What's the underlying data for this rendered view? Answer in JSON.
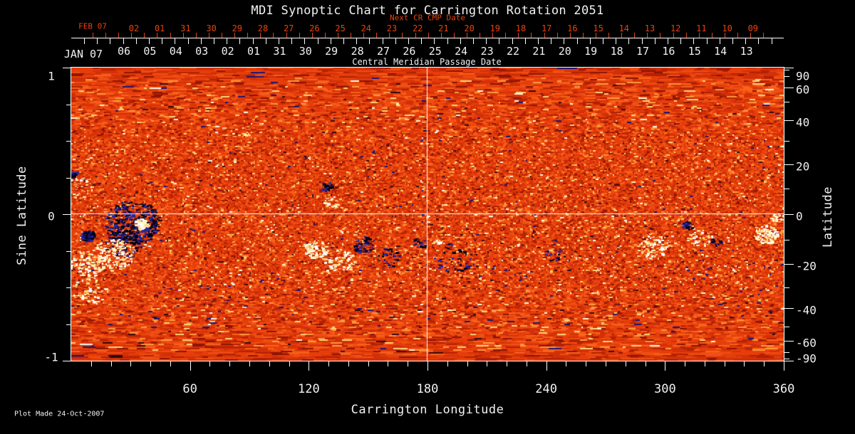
{
  "title": "MDI Synoptic Chart for Carrington Rotation 2051",
  "footer": {
    "plot_made": "Plot Made 24-Oct-2007"
  },
  "colors": {
    "background": "#000000",
    "foreground": "#f2f2f2",
    "accent_red": "#e8430d"
  },
  "chart_data": {
    "type": "heatmap",
    "title": "MDI Synoptic Chart for Carrington Rotation 2051",
    "xlabel": "Carrington Longitude",
    "ylabel_left": "Sine Latitude",
    "ylabel_right": "Latitude",
    "xlim": [
      0,
      360
    ],
    "ylim_sine_latitude": [
      -1,
      1
    ],
    "x_major_ticks": [
      60,
      120,
      180,
      240,
      300,
      360
    ],
    "x_minor_tick_step_deg": 10,
    "left_axis_major_ticks": [
      1,
      0,
      -1
    ],
    "left_axis_minor_ticks": [
      0.75,
      0.5,
      0.25,
      -0.25,
      -0.5,
      -0.75
    ],
    "right_axis_tick_latitudes": [
      90,
      80,
      70,
      60,
      50,
      40,
      30,
      20,
      10,
      0,
      -10,
      -20,
      -30,
      -40,
      -50,
      -60,
      -70,
      -80,
      -90
    ],
    "right_axis_labeled_latitudes": [
      90,
      60,
      40,
      20,
      0,
      -20,
      -40,
      -60,
      -90
    ],
    "crosshair": {
      "longitude": 180,
      "sine_latitude": 0
    },
    "top_axis": {
      "subtitle": "Next CR CMP Date",
      "axis_caption": "Central Meridian Passage Date",
      "next_cr_row": {
        "month_label": "FEB 07",
        "days": [
          "02",
          "01",
          "31",
          "30",
          "29",
          "28",
          "27",
          "26",
          "25",
          "24",
          "23",
          "22",
          "21",
          "20",
          "19",
          "18",
          "17",
          "16",
          "15",
          "14",
          "13",
          "12",
          "11",
          "10",
          "09"
        ]
      },
      "cmp_row": {
        "month_label": "JAN 07",
        "days": [
          "06",
          "05",
          "04",
          "03",
          "02",
          "01",
          "31",
          "30",
          "29",
          "28",
          "27",
          "26",
          "25",
          "24",
          "23",
          "22",
          "21",
          "20",
          "19",
          "18",
          "17",
          "16",
          "15",
          "14",
          "13"
        ]
      }
    },
    "colormap": {
      "description": "Solar magnetogram: orange-red quiet sun, dark navy/black patches = negative magnetic polarity, white/yellow patches = positive magnetic polarity",
      "base_stops": [
        {
          "p": 0.004,
          "color": "#16167a"
        },
        {
          "p": 0.01,
          "color": "#2f0a12"
        },
        {
          "p": 0.05,
          "color": "#8c1404"
        },
        {
          "p": 0.15,
          "color": "#b32104"
        },
        {
          "p": 0.38,
          "color": "#d23008"
        },
        {
          "p": 0.65,
          "color": "#e63e0b"
        },
        {
          "p": 0.83,
          "color": "#ef4f12"
        },
        {
          "p": 0.93,
          "color": "#f8631a"
        },
        {
          "p": 0.975,
          "color": "#ff9a3e"
        },
        {
          "p": 0.994,
          "color": "#ffd57a"
        },
        {
          "p": 1.1,
          "color": "#fffbe6"
        }
      ],
      "negative_colors": [
        "#00001c",
        "#13137a",
        "#26269e",
        "#050510"
      ],
      "positive_colors": [
        "#ffffff",
        "#fff6c8",
        "#ffd67d"
      ]
    },
    "active_regions": [
      {
        "lon": 9,
        "sine_lat": -0.15,
        "radius": 10,
        "polarity": "negative",
        "density": 1.0
      },
      {
        "lon": 31,
        "sine_lat": -0.06,
        "radius": 40,
        "polarity": "negative",
        "density": 0.45
      },
      {
        "lon": 27,
        "sine_lat": -0.2,
        "radius": 26,
        "polarity": "negative",
        "density": 0.3
      },
      {
        "lon": 36,
        "sine_lat": -0.07,
        "radius": 10,
        "polarity": "positive",
        "density": 1.0
      },
      {
        "lon": 22,
        "sine_lat": -0.28,
        "radius": 30,
        "polarity": "positive",
        "density": 0.3
      },
      {
        "lon": 8,
        "sine_lat": -0.35,
        "radius": 24,
        "polarity": "positive",
        "density": 0.3
      },
      {
        "lon": 10,
        "sine_lat": -0.52,
        "radius": 26,
        "polarity": "positive",
        "density": 0.15
      },
      {
        "lon": 4,
        "sine_lat": 0.18,
        "radius": 20,
        "polarity": "positive",
        "density": 0.12
      },
      {
        "lon": 1,
        "sine_lat": 0.27,
        "radius": 6,
        "polarity": "negative",
        "density": 0.9
      },
      {
        "lon": 129,
        "sine_lat": 0.19,
        "radius": 9,
        "polarity": "negative",
        "density": 0.55
      },
      {
        "lon": 132,
        "sine_lat": 0.08,
        "radius": 12,
        "polarity": "positive",
        "density": 0.25
      },
      {
        "lon": 124,
        "sine_lat": -0.24,
        "radius": 17,
        "polarity": "positive",
        "density": 0.55
      },
      {
        "lon": 136,
        "sine_lat": -0.32,
        "radius": 22,
        "polarity": "positive",
        "density": 0.28
      },
      {
        "lon": 148,
        "sine_lat": -0.21,
        "radius": 15,
        "polarity": "negative",
        "density": 0.5
      },
      {
        "lon": 161,
        "sine_lat": -0.3,
        "radius": 18,
        "polarity": "negative",
        "density": 0.22
      },
      {
        "lon": 176,
        "sine_lat": -0.2,
        "radius": 11,
        "polarity": "negative",
        "density": 0.4
      },
      {
        "lon": 185,
        "sine_lat": -0.19,
        "radius": 6,
        "polarity": "positive",
        "density": 0.5
      },
      {
        "lon": 193,
        "sine_lat": -0.3,
        "radius": 28,
        "polarity": "negative",
        "density": 0.1
      },
      {
        "lon": 245,
        "sine_lat": -0.28,
        "radius": 18,
        "polarity": "negative",
        "density": 0.1
      },
      {
        "lon": 295,
        "sine_lat": -0.22,
        "radius": 24,
        "polarity": "positive",
        "density": 0.25
      },
      {
        "lon": 312,
        "sine_lat": -0.08,
        "radius": 9,
        "polarity": "negative",
        "density": 0.6
      },
      {
        "lon": 326,
        "sine_lat": -0.19,
        "radius": 8,
        "polarity": "negative",
        "density": 0.6
      },
      {
        "lon": 318,
        "sine_lat": -0.17,
        "radius": 18,
        "polarity": "positive",
        "density": 0.2
      },
      {
        "lon": 351,
        "sine_lat": -0.14,
        "radius": 17,
        "polarity": "positive",
        "density": 0.65
      },
      {
        "lon": 357,
        "sine_lat": -0.02,
        "radius": 9,
        "polarity": "positive",
        "density": 0.5
      }
    ]
  }
}
